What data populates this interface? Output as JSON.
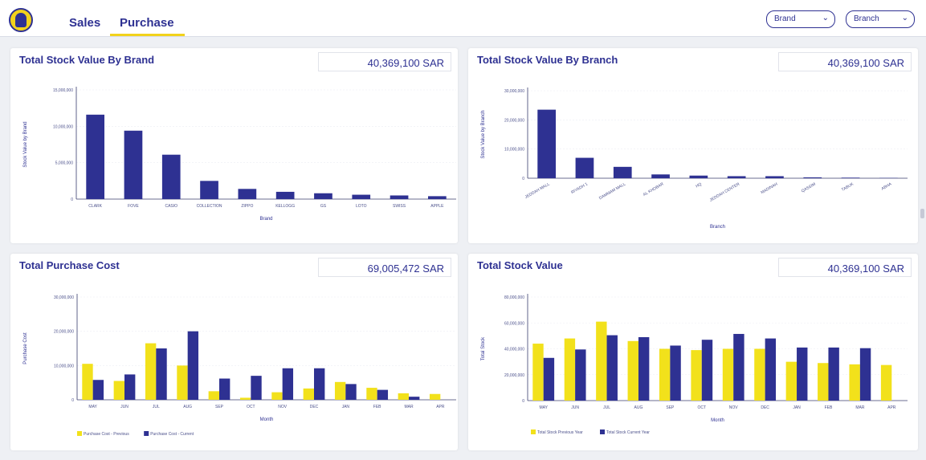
{
  "nav": {
    "tabs": [
      {
        "label": "Sales",
        "active": false
      },
      {
        "label": "Purchase",
        "active": true
      }
    ],
    "filters": [
      {
        "selected": "Brand"
      },
      {
        "selected": "Branch"
      }
    ]
  },
  "colors": {
    "navy": "#2e3192",
    "yellow": "#f2e11b"
  },
  "cards": {
    "brand": {
      "title": "Total Stock Value By Brand",
      "total": "40,369,100 SAR"
    },
    "branch": {
      "title": "Total Stock Value By Branch",
      "total": "40,369,100 SAR"
    },
    "purchase": {
      "title": "Total Purchase Cost",
      "total": "69,005,472 SAR"
    },
    "stock": {
      "title": "Total Stock Value",
      "total": "40,369,100 SAR"
    }
  },
  "chart_data": [
    {
      "id": "brand",
      "type": "bar",
      "title": "Total Stock Value By Brand",
      "xlabel": "Brand",
      "ylabel": "Stock Value by Brand",
      "ylim": [
        0,
        15000000
      ],
      "yticks": [
        "0",
        "5,000,000",
        "10,000,000",
        "15,000,000"
      ],
      "categories": [
        "CLARK",
        "FOVE",
        "CASIO",
        "COLLECTION",
        "ZIPPO",
        "KELLOGG",
        "GS",
        "LOTO",
        "SWISS",
        "APPLE"
      ],
      "series": [
        {
          "name": "Stock Value",
          "color": "#2e3192",
          "values": [
            11600000,
            9400000,
            6100000,
            2500000,
            1400000,
            1000000,
            800000,
            600000,
            500000,
            400000
          ]
        }
      ]
    },
    {
      "id": "branch",
      "type": "bar",
      "title": "Total Stock Value By Branch",
      "xlabel": "Branch",
      "ylabel": "Stock Value by Branch",
      "ylim": [
        0,
        30000000
      ],
      "yticks": [
        "0",
        "10,000,000",
        "20,000,000",
        "30,000,000"
      ],
      "categories": [
        "JEDDAH MALL",
        "RIYADH 1",
        "DAMMAM MALL",
        "AL KHOBAR",
        "HQ",
        "JEDDAH CENTER",
        "MADINAH",
        "QASSIM",
        "TABUK",
        "ABHA"
      ],
      "series": [
        {
          "name": "Stock Value",
          "color": "#2e3192",
          "values": [
            23500000,
            7000000,
            3900000,
            1300000,
            900000,
            700000,
            700000,
            300000,
            200000,
            100000
          ]
        }
      ]
    },
    {
      "id": "purchase",
      "type": "bar",
      "title": "Total Purchase Cost",
      "xlabel": "Month",
      "ylabel": "Purchase Cost",
      "ylim": [
        0,
        30000000
      ],
      "yticks": [
        "0",
        "10,000,000",
        "20,000,000",
        "30,000,000"
      ],
      "categories": [
        "MAY",
        "JUN",
        "JUL",
        "AUG",
        "SEP",
        "OCT",
        "NOV",
        "DEC",
        "JAN",
        "FEB",
        "MAR",
        "APR"
      ],
      "series": [
        {
          "name": "Purchase Cost - Previous",
          "color": "#f2e11b",
          "values": [
            10500000,
            5500000,
            16500000,
            10000000,
            2500000,
            600000,
            2200000,
            3300000,
            5200000,
            3500000,
            1900000,
            1700000
          ]
        },
        {
          "name": "Purchase Cost - Current",
          "color": "#2e3192",
          "values": [
            5800000,
            7400000,
            15000000,
            20000000,
            6200000,
            7000000,
            9200000,
            9200000,
            4600000,
            2900000,
            900000,
            0
          ]
        }
      ]
    },
    {
      "id": "stock",
      "type": "bar",
      "title": "Total Stock Value",
      "xlabel": "Month",
      "ylabel": "Total Stock",
      "ylim": [
        0,
        80000000
      ],
      "yticks": [
        "0",
        "20,000,000",
        "40,000,000",
        "60,000,000",
        "80,000,000"
      ],
      "categories": [
        "MAY",
        "JUN",
        "JUL",
        "AUG",
        "SEP",
        "OCT",
        "NOV",
        "DEC",
        "JAN",
        "FEB",
        "MAR",
        "APR"
      ],
      "series": [
        {
          "name": "Total Stock Previous Year",
          "color": "#f2e11b",
          "values": [
            44000000,
            48000000,
            61000000,
            46000000,
            40000000,
            39000000,
            40000000,
            40000000,
            30000000,
            29000000,
            28000000,
            27500000
          ]
        },
        {
          "name": "Total Stock Current Year",
          "color": "#2e3192",
          "values": [
            33000000,
            39500000,
            50500000,
            49000000,
            42500000,
            47000000,
            51500000,
            48000000,
            41000000,
            41000000,
            40500000,
            0
          ]
        }
      ]
    }
  ]
}
